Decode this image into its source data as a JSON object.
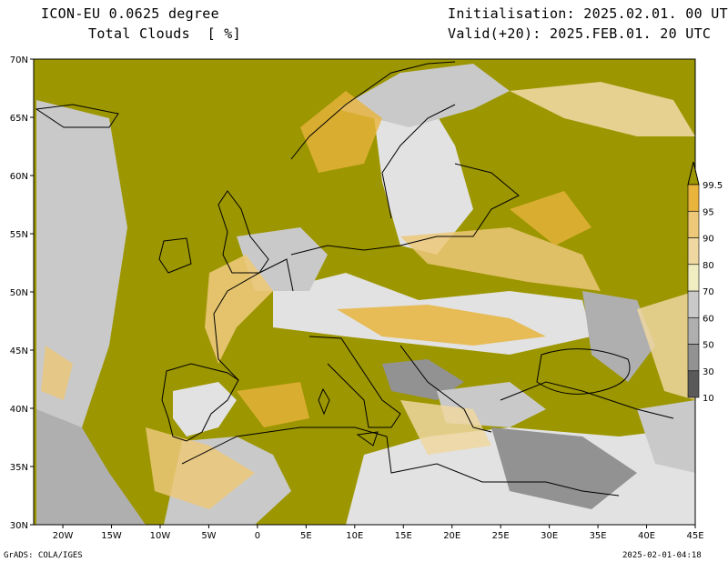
{
  "header": {
    "model": "ICON-EU 0.0625 degree",
    "variable": "Total Clouds  [ %]",
    "initialisation": "Initialisation: 2025.02.01. 00 UTC",
    "valid": "Valid(+20): 2025.FEB.01. 20 UTC"
  },
  "map": {
    "lon_range": [
      -23,
      45
    ],
    "lat_range": [
      30,
      70
    ],
    "lon_ticks": [
      {
        "value": -20,
        "label": "20W"
      },
      {
        "value": -15,
        "label": "15W"
      },
      {
        "value": -10,
        "label": "10W"
      },
      {
        "value": -5,
        "label": "5W"
      },
      {
        "value": 0,
        "label": "0"
      },
      {
        "value": 5,
        "label": "5E"
      },
      {
        "value": 10,
        "label": "10E"
      },
      {
        "value": 15,
        "label": "15E"
      },
      {
        "value": 20,
        "label": "20E"
      },
      {
        "value": 25,
        "label": "25E"
      },
      {
        "value": 30,
        "label": "30E"
      },
      {
        "value": 35,
        "label": "35E"
      },
      {
        "value": 40,
        "label": "40E"
      },
      {
        "value": 45,
        "label": "45E"
      }
    ],
    "lat_ticks": [
      {
        "value": 30,
        "label": "30N"
      },
      {
        "value": 35,
        "label": "35N"
      },
      {
        "value": 40,
        "label": "40N"
      },
      {
        "value": 45,
        "label": "45N"
      },
      {
        "value": 50,
        "label": "50N"
      },
      {
        "value": 55,
        "label": "55N"
      },
      {
        "value": 60,
        "label": "60N"
      },
      {
        "value": 65,
        "label": "65N"
      },
      {
        "value": 70,
        "label": "70N"
      }
    ]
  },
  "colorbar": {
    "levels": [
      "10",
      "30",
      "50",
      "60",
      "70",
      "80",
      "90",
      "95",
      "99.5"
    ],
    "colors": [
      "#5a5a5a",
      "#929292",
      "#afafaf",
      "#c9c9c9",
      "#f0eec0",
      "#eed7a0",
      "#ecc878",
      "#e8b43c"
    ],
    "below_color": "#e2e2e2",
    "above_color": "#9c9600"
  },
  "footer": {
    "left": "GrADS: COLA/IGES",
    "right": "2025-02-01-04:18"
  }
}
